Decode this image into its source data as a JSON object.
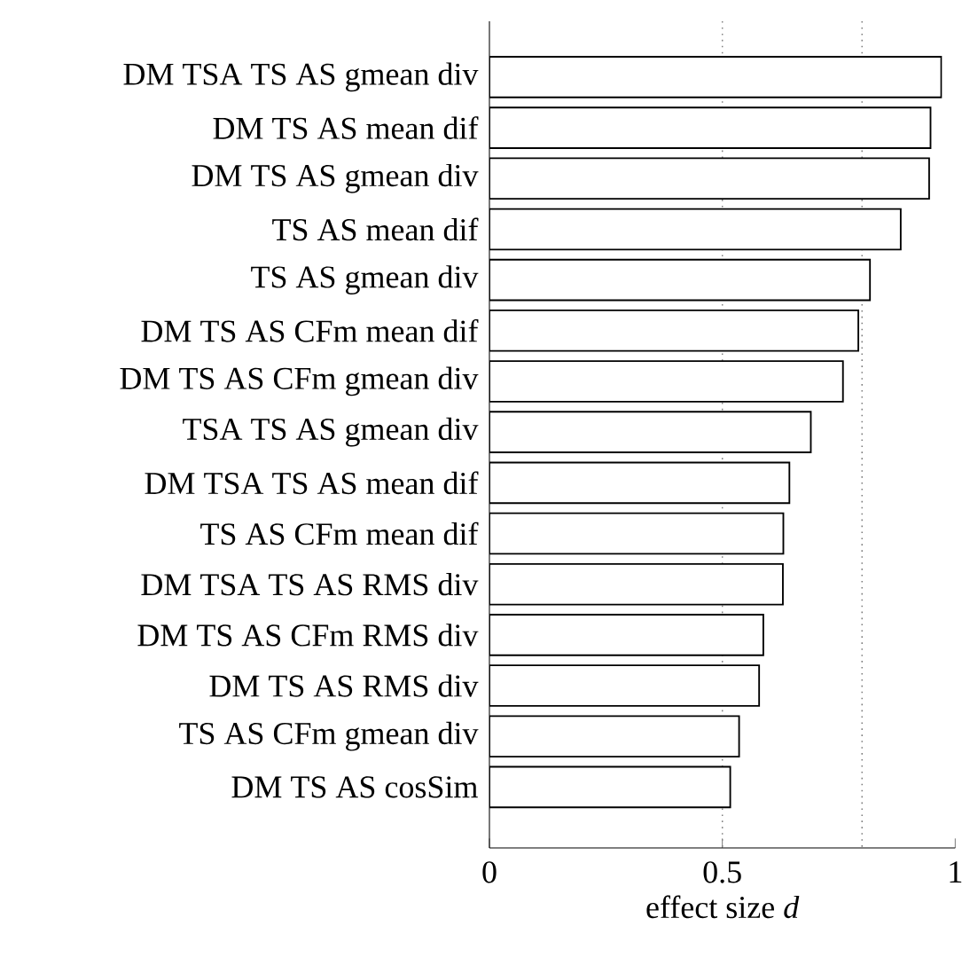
{
  "chart_data": {
    "type": "bar",
    "orientation": "horizontal",
    "xlabel": "effect size *d*",
    "categories": [
      "DM TSA TS AS gmean div",
      "DM TS AS mean dif",
      "DM TS AS gmean div",
      "TS AS mean dif",
      "TS AS gmean div",
      "DM TS AS CFm mean dif",
      "DM TS AS CFm gmean div",
      "TSA TS AS gmean div",
      "DM TSA TS AS mean dif",
      "TS AS CFm mean dif",
      "DM TSA TS AS RMS div",
      "DM TS AS CFm RMS div",
      "DM TS AS RMS div",
      "TS AS CFm gmean div",
      "DM TS AS cosSim"
    ],
    "values": [
      0.97,
      0.947,
      0.944,
      0.883,
      0.817,
      0.792,
      0.759,
      0.69,
      0.644,
      0.631,
      0.63,
      0.588,
      0.579,
      0.536,
      0.517
    ],
    "color": "#ffffff",
    "xlim": [
      0,
      1
    ],
    "xticks": [
      0,
      0.5,
      1
    ],
    "ref_lines": [
      {
        "axis": "x",
        "value": 0.5,
        "color": "#808080",
        "line_style": "dotted"
      },
      {
        "axis": "x",
        "value": 0.8,
        "color": "#808080",
        "line_style": "dotted"
      }
    ],
    "grid": false
  }
}
